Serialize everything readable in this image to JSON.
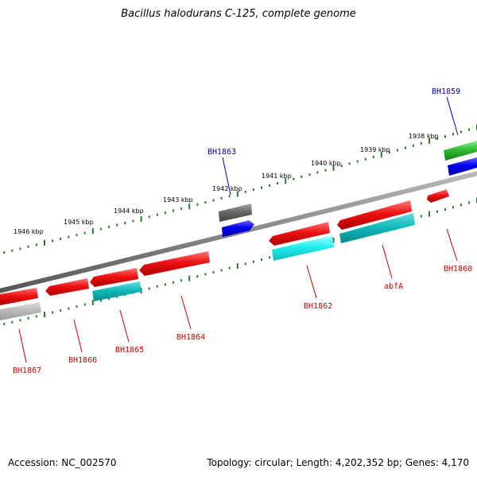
{
  "title": "Bacillus halodurans C-125, complete genome",
  "kbp_ticks": [
    "1938 kbp",
    "1939 kbp",
    "1940 kbp",
    "1941 kbp",
    "1942 kbp",
    "1943 kbp",
    "1944 kbp",
    "1945 kbp",
    "1946 kbp"
  ],
  "genes": [
    {
      "name": "BH1859",
      "strand": "forward",
      "color": "#0000aa"
    },
    {
      "name": "BH1863",
      "strand": "forward",
      "color": "#0000aa"
    },
    {
      "name": "BH1860",
      "strand": "reverse",
      "color": "#cc0000"
    },
    {
      "name": "abfA",
      "strand": "reverse",
      "color": "#cc0000"
    },
    {
      "name": "BH1862",
      "strand": "reverse",
      "color": "#cc0000"
    },
    {
      "name": "BH1864",
      "strand": "reverse",
      "color": "#cc0000"
    },
    {
      "name": "BH1865",
      "strand": "reverse",
      "color": "#cc0000"
    },
    {
      "name": "BH1866",
      "strand": "reverse",
      "color": "#cc0000"
    },
    {
      "name": "BH1867",
      "strand": "reverse",
      "color": "#cc0000"
    }
  ],
  "colors": {
    "backbone": "#888888",
    "tick_green": "#2a7a2a",
    "red_feature": "#ee1111",
    "cyan_feature": "#11bbbb",
    "bright_cyan": "#22eeee",
    "blue_feature": "#0000ee",
    "green_feature": "#33bb33",
    "gray_feature": "#666666",
    "light_gray_feature": "#bbbbbb"
  },
  "footer": {
    "accession": "Accession: NC_002570",
    "topology": "Topology: circular; Length: 4,202,352 bp; Genes: 4,170"
  }
}
